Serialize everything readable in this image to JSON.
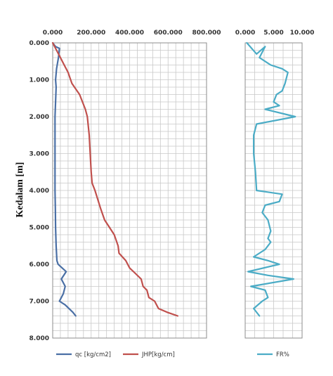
{
  "chart_data": [
    {
      "type": "line",
      "panel": "left",
      "ylabel": "Kedalam [m]",
      "ylim": [
        0,
        8
      ],
      "y_reversed": true,
      "y_ticks": [
        "0.000",
        "1.000",
        "2.000",
        "3.000",
        "4.000",
        "5.000",
        "6.000",
        "7.000",
        "8.000"
      ],
      "xlim": [
        0,
        800
      ],
      "x_axis_position": "top",
      "x_ticks": [
        "0.000",
        "200.000",
        "400.000",
        "600.000",
        "800.000"
      ],
      "grid": true,
      "legend_position": "bottom",
      "series": [
        {
          "name": "qc [kg/cm2]",
          "color": "#4a6fa5",
          "points": [
            [
              0,
              0
            ],
            [
              15,
              0.1
            ],
            [
              35,
              0.15
            ],
            [
              30,
              0.4
            ],
            [
              20,
              0.7
            ],
            [
              15,
              1.0
            ],
            [
              18,
              1.2
            ],
            [
              15,
              1.6
            ],
            [
              12,
              2.0
            ],
            [
              12,
              3.0
            ],
            [
              12,
              4.0
            ],
            [
              14,
              4.5
            ],
            [
              15,
              5.0
            ],
            [
              18,
              5.5
            ],
            [
              22,
              5.9
            ],
            [
              28,
              6.0
            ],
            [
              70,
              6.2
            ],
            [
              45,
              6.4
            ],
            [
              65,
              6.6
            ],
            [
              55,
              6.8
            ],
            [
              35,
              7.0
            ],
            [
              65,
              7.1
            ],
            [
              105,
              7.3
            ],
            [
              120,
              7.4
            ]
          ]
        },
        {
          "name": "JHP[kg/cm]",
          "color": "#c0504d",
          "points": [
            [
              0,
              0
            ],
            [
              20,
              0.2
            ],
            [
              40,
              0.4
            ],
            [
              60,
              0.6
            ],
            [
              80,
              0.8
            ],
            [
              100,
              1.1
            ],
            [
              140,
              1.4
            ],
            [
              155,
              1.6
            ],
            [
              170,
              1.8
            ],
            [
              180,
              2.0
            ],
            [
              190,
              2.5
            ],
            [
              195,
              3.0
            ],
            [
              200,
              3.5
            ],
            [
              205,
              3.8
            ],
            [
              220,
              4.0
            ],
            [
              250,
              4.5
            ],
            [
              270,
              4.8
            ],
            [
              295,
              5.0
            ],
            [
              320,
              5.2
            ],
            [
              340,
              5.5
            ],
            [
              345,
              5.7
            ],
            [
              380,
              5.9
            ],
            [
              400,
              6.1
            ],
            [
              420,
              6.2
            ],
            [
              460,
              6.4
            ],
            [
              470,
              6.6
            ],
            [
              490,
              6.7
            ],
            [
              500,
              6.9
            ],
            [
              530,
              7.0
            ],
            [
              550,
              7.2
            ],
            [
              595,
              7.3
            ],
            [
              650,
              7.4
            ]
          ]
        }
      ]
    },
    {
      "type": "line",
      "panel": "right",
      "ylim": [
        0,
        8
      ],
      "y_reversed": true,
      "xlim": [
        0,
        10
      ],
      "x_axis_position": "top",
      "x_ticks": [
        "0.000",
        "5.000",
        "10.000"
      ],
      "grid": true,
      "legend_position": "bottom",
      "series": [
        {
          "name": "FR%",
          "color": "#4bacc6",
          "points": [
            [
              0.3,
              0
            ],
            [
              2.0,
              0.3
            ],
            [
              3.5,
              0.1
            ],
            [
              2.5,
              0.4
            ],
            [
              4.5,
              0.6
            ],
            [
              6.5,
              0.7
            ],
            [
              7.5,
              0.8
            ],
            [
              7.0,
              1.1
            ],
            [
              6.5,
              1.3
            ],
            [
              5.5,
              1.4
            ],
            [
              5.0,
              1.6
            ],
            [
              6.0,
              1.7
            ],
            [
              3.5,
              1.8
            ],
            [
              8.8,
              2.0
            ],
            [
              2.0,
              2.2
            ],
            [
              1.5,
              2.5
            ],
            [
              1.5,
              3.0
            ],
            [
              1.8,
              3.5
            ],
            [
              2.0,
              4.0
            ],
            [
              6.5,
              4.1
            ],
            [
              6.0,
              4.3
            ],
            [
              3.5,
              4.4
            ],
            [
              3.0,
              4.6
            ],
            [
              4.0,
              4.8
            ],
            [
              4.5,
              5.1
            ],
            [
              4.0,
              5.3
            ],
            [
              4.5,
              5.4
            ],
            [
              3.5,
              5.6
            ],
            [
              1.5,
              5.8
            ],
            [
              4.0,
              5.9
            ],
            [
              6.0,
              6.0
            ],
            [
              0.5,
              6.2
            ],
            [
              4.0,
              6.3
            ],
            [
              8.5,
              6.4
            ],
            [
              1.0,
              6.6
            ],
            [
              3.5,
              6.7
            ],
            [
              4.0,
              6.9
            ],
            [
              3.0,
              7.0
            ],
            [
              1.5,
              7.2
            ],
            [
              2.5,
              7.4
            ]
          ]
        }
      ]
    }
  ]
}
